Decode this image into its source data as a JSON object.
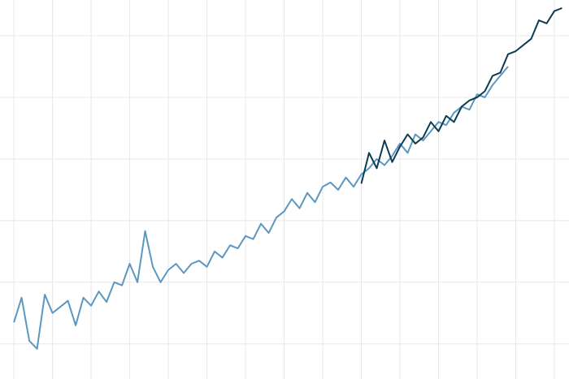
{
  "chart_data": {
    "type": "line",
    "xlim": [
      -0.36,
      14.38
    ],
    "xticks": [
      0,
      1,
      2,
      3,
      4,
      5,
      6,
      7,
      8,
      9,
      10,
      11,
      12,
      13,
      14
    ],
    "ylim": [
      -0.57,
      5.58
    ],
    "yticks": [
      0,
      1,
      2,
      3,
      4,
      5
    ],
    "grid": true,
    "series": [
      {
        "color": "#5b97c0",
        "x": [
          0,
          0.2,
          0.4,
          0.6,
          0.8,
          1.0,
          1.2,
          1.4,
          1.6,
          1.8,
          2.0,
          2.2,
          2.4,
          2.6,
          2.8,
          3.0,
          3.2,
          3.4,
          3.6,
          3.8,
          4.0,
          4.2,
          4.4,
          4.6,
          4.8,
          5.0,
          5.2,
          5.4,
          5.6,
          5.8,
          6.0,
          6.2,
          6.4,
          6.6,
          6.8,
          7.0,
          7.2,
          7.4,
          7.6,
          7.8,
          8.0,
          8.2,
          8.4,
          8.6,
          8.8,
          9.0,
          9.2,
          9.4,
          9.6,
          9.8,
          10.0,
          10.2,
          10.4,
          10.6,
          10.8,
          11.0,
          11.2,
          11.4,
          11.6,
          11.8,
          12.0,
          12.2,
          12.4,
          12.6,
          12.8
        ],
        "values": [
          0.35,
          0.75,
          0.05,
          -0.08,
          0.8,
          0.5,
          0.6,
          0.7,
          0.3,
          0.75,
          0.62,
          0.85,
          0.68,
          1.0,
          0.95,
          1.3,
          1.0,
          1.83,
          1.25,
          1.0,
          1.2,
          1.3,
          1.15,
          1.3,
          1.35,
          1.25,
          1.5,
          1.4,
          1.6,
          1.55,
          1.75,
          1.7,
          1.95,
          1.8,
          2.05,
          2.15,
          2.35,
          2.2,
          2.45,
          2.3,
          2.55,
          2.62,
          2.5,
          2.7,
          2.55,
          2.75,
          2.85,
          3.0,
          2.9,
          3.05,
          3.25,
          3.1,
          3.4,
          3.3,
          3.45,
          3.6,
          3.55,
          3.75,
          3.85,
          3.8,
          4.05,
          4.0,
          4.2,
          4.35,
          4.5
        ]
      },
      {
        "color": "#0d3b53",
        "x": [
          9.0,
          9.2,
          9.4,
          9.6,
          9.8,
          10.0,
          10.2,
          10.4,
          10.6,
          10.8,
          11.0,
          11.2,
          11.4,
          11.6,
          11.8,
          12.0,
          12.2,
          12.4,
          12.6,
          12.8,
          13.0,
          13.2,
          13.4,
          13.6,
          13.8,
          14.0,
          14.2
        ],
        "values": [
          2.6,
          3.1,
          2.85,
          3.3,
          2.95,
          3.2,
          3.4,
          3.25,
          3.35,
          3.6,
          3.45,
          3.7,
          3.6,
          3.85,
          3.95,
          4.0,
          4.1,
          4.35,
          4.4,
          4.7,
          4.75,
          4.85,
          4.95,
          5.25,
          5.2,
          5.4,
          5.45
        ]
      }
    ]
  }
}
